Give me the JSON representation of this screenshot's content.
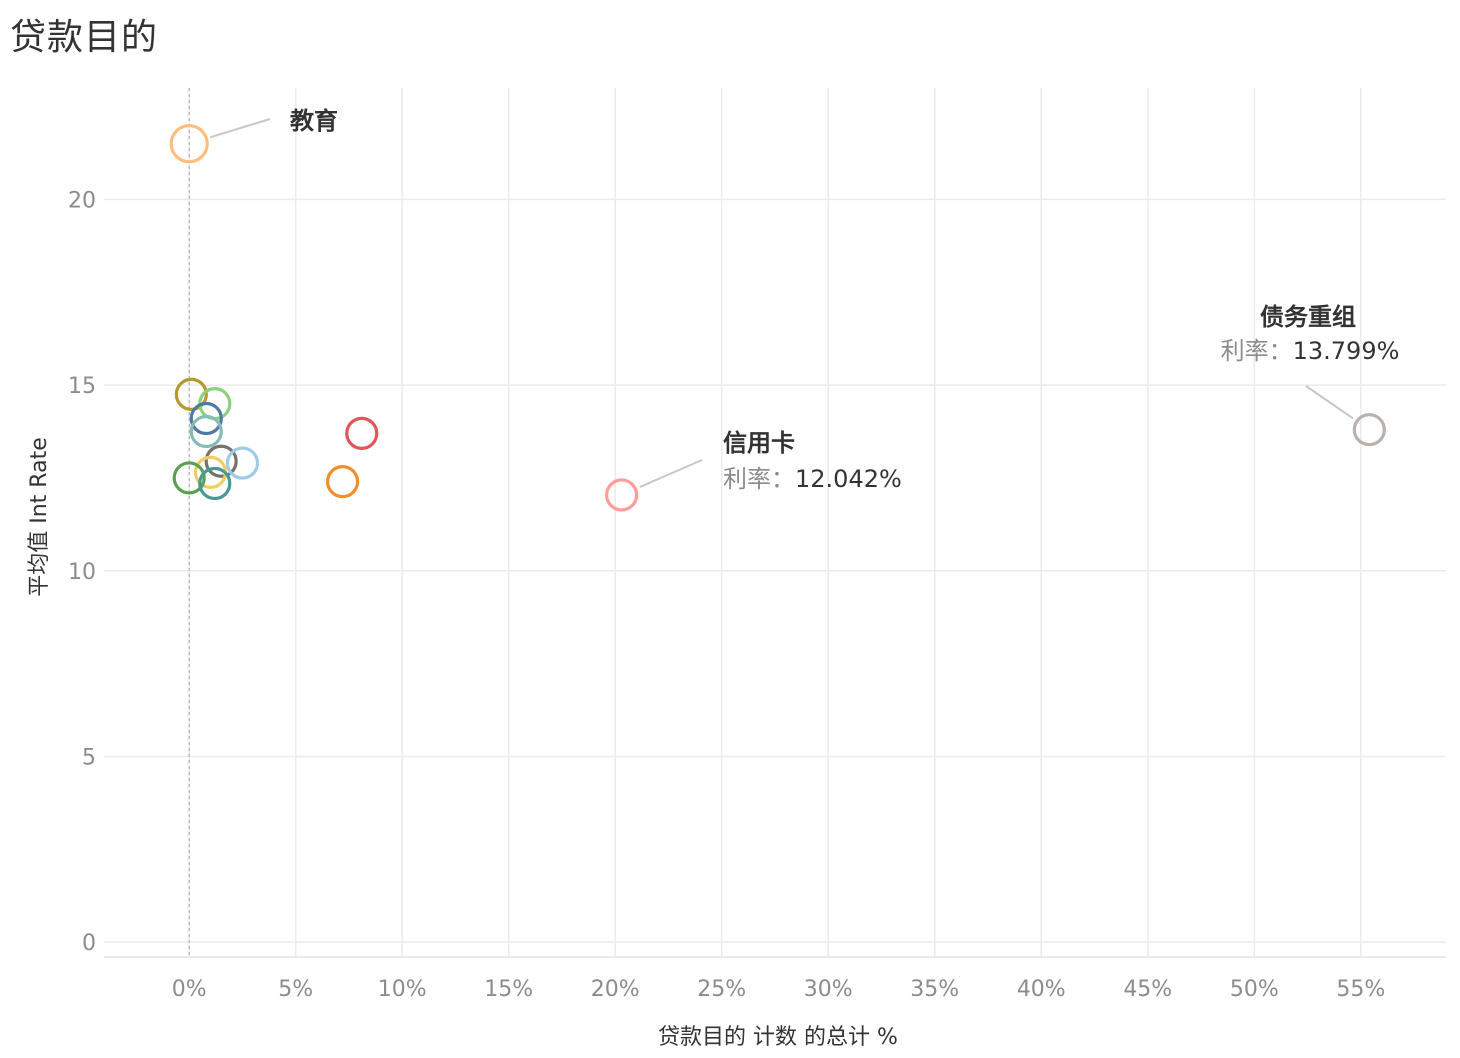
{
  "title": "贷款目的",
  "chart_data": {
    "type": "scatter",
    "title": "贷款目的",
    "xlabel": "贷款目的 计数 的总计 %",
    "ylabel": "平均值 Int Rate",
    "xlim": [
      -4,
      59
    ],
    "ylim": [
      -0.4,
      23
    ],
    "x_ticks": [
      "0%",
      "5%",
      "10%",
      "15%",
      "20%",
      "25%",
      "30%",
      "35%",
      "40%",
      "45%",
      "50%",
      "55%"
    ],
    "x_tick_values": [
      0,
      5,
      10,
      15,
      20,
      25,
      30,
      35,
      40,
      45,
      50,
      55
    ],
    "y_ticks": [
      "0",
      "5",
      "10",
      "15",
      "20"
    ],
    "y_tick_values": [
      0,
      5,
      10,
      15,
      20
    ],
    "grid": true,
    "reference_line_x": 0,
    "marker": "open-circle",
    "points": [
      {
        "x": 0.0,
        "y": 21.5,
        "color": "#ffbe7d"
      },
      {
        "x": 0.1,
        "y": 14.75,
        "color": "#b6992d"
      },
      {
        "x": 1.2,
        "y": 14.5,
        "color": "#8cd17d"
      },
      {
        "x": 0.8,
        "y": 14.1,
        "color": "#4e79a7"
      },
      {
        "x": 0.8,
        "y": 13.75,
        "color": "#86bcb6"
      },
      {
        "x": 8.1,
        "y": 13.7,
        "color": "#e15759"
      },
      {
        "x": 1.5,
        "y": 12.95,
        "color": "#79706e"
      },
      {
        "x": 2.5,
        "y": 12.9,
        "color": "#a0cbe8"
      },
      {
        "x": 1.0,
        "y": 12.65,
        "color": "#f1ce63"
      },
      {
        "x": 0.0,
        "y": 12.5,
        "color": "#59a14f"
      },
      {
        "x": 1.2,
        "y": 12.35,
        "color": "#499894"
      },
      {
        "x": 7.2,
        "y": 12.4,
        "color": "#f28e2b"
      },
      {
        "x": 20.3,
        "y": 12.042,
        "color": "#ff9d9a"
      },
      {
        "x": 55.4,
        "y": 13.799,
        "color": "#bab0ac"
      }
    ],
    "annotations": [
      {
        "name": "教育"
      },
      {
        "name": "信用卡",
        "key": "利率：",
        "value": "12.042%"
      },
      {
        "name": "债务重组",
        "key": "利率：",
        "value": "13.799%"
      }
    ]
  }
}
